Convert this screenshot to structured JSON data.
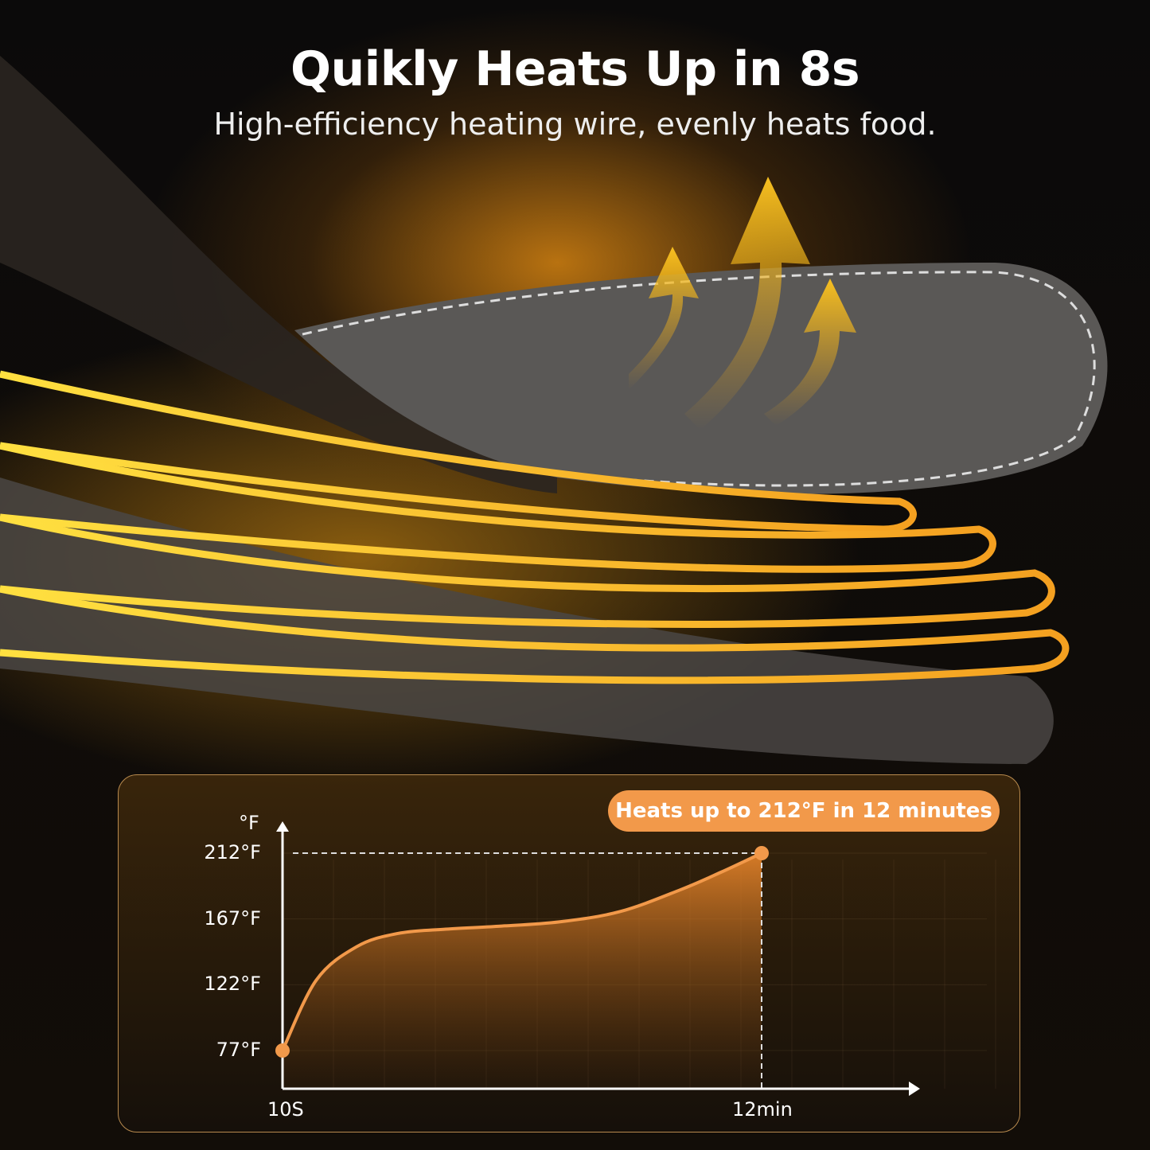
{
  "header": {
    "title": "Quikly Heats Up in 8s",
    "subtitle": "High-efficiency heating wire, evenly heats food."
  },
  "colors": {
    "accent": "#f2994a",
    "background": "#0d0b0a",
    "glow": "#e8a020"
  },
  "chart_data": {
    "type": "area",
    "title": "",
    "annotation": "Heats up to 212°F in 12 minutes",
    "ylabel": "°F",
    "xlabel": "",
    "y_ticks": [
      "77°F",
      "122°F",
      "167°F",
      "212°F"
    ],
    "y_tick_values": [
      77,
      122,
      167,
      212
    ],
    "x_ticks": [
      "10S",
      "12min"
    ],
    "xlim_minutes": [
      0.17,
      12
    ],
    "grid": true,
    "series": [
      {
        "points": [
          [
            0.17,
            77
          ],
          [
            1,
            125
          ],
          [
            2,
            148
          ],
          [
            3,
            157
          ],
          [
            4.2,
            160
          ],
          [
            5.5,
            162
          ],
          [
            7,
            165
          ],
          [
            8.5,
            172
          ],
          [
            10,
            187
          ],
          [
            11,
            199
          ],
          [
            12,
            212
          ]
        ]
      }
    ],
    "markers": [
      [
        0.17,
        77
      ],
      [
        12,
        212
      ]
    ]
  }
}
